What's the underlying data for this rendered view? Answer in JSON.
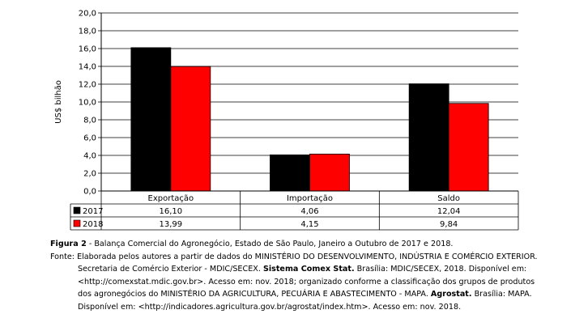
{
  "chart_data": {
    "type": "bar",
    "categories": [
      "Exportação",
      "Importação",
      "Saldo"
    ],
    "series": [
      {
        "name": "2017",
        "values": [
          16.1,
          4.06,
          12.04
        ],
        "labels": [
          "16,10",
          "4,06",
          "12,04"
        ],
        "color": "#000000"
      },
      {
        "name": "2018",
        "values": [
          13.99,
          4.15,
          9.84
        ],
        "labels": [
          "13,99",
          "4,15",
          "9,84"
        ],
        "color": "#ff0000"
      }
    ],
    "ylabel": "US$ bilhão",
    "ylim": [
      0,
      20
    ],
    "yticks": [
      "0,0",
      "2,0",
      "4,0",
      "6,0",
      "8,0",
      "10,0",
      "12,0",
      "14,0",
      "16,0",
      "18,0",
      "20,0"
    ],
    "grid": true,
    "legend": "data-table"
  },
  "caption": {
    "figure_label": "Figura 2",
    "figure_text": " - Balança Comercial do Agronegócio, Estado de São Paulo, Janeiro a Outubro de 2017 e 2018.",
    "source_label": "Fonte:",
    "line1": " Elaborada pelos autores a partir de dados do MINISTÉRIO DO DESENVOLVIMENTO, INDÚSTRIA E COMÉRCIO EXTERIOR.",
    "line2a": "Secretaria de Comércio Exterior - MDIC/SECEX. ",
    "line2b": "Sistema Comex Stat.",
    "line2c": " Brasília: MDIC/SECEX, 2018. Disponível em:",
    "line3": "<http://comexstat.mdic.gov.br>. Acesso em: nov. 2018; organizado conforme a classificação dos grupos de produtos",
    "line4a": "dos agronegócios do MINISTÉRIO DA AGRICULTURA, PECUÁRIA E ABASTECIMENTO - MAPA. ",
    "line4b": "Agrostat.",
    "line4c": " Brasília: MAPA.",
    "line5": "Disponível em: <http://indicadores.agricultura.gov.br/agrostat/index.htm>. Acesso em: nov. 2018."
  }
}
